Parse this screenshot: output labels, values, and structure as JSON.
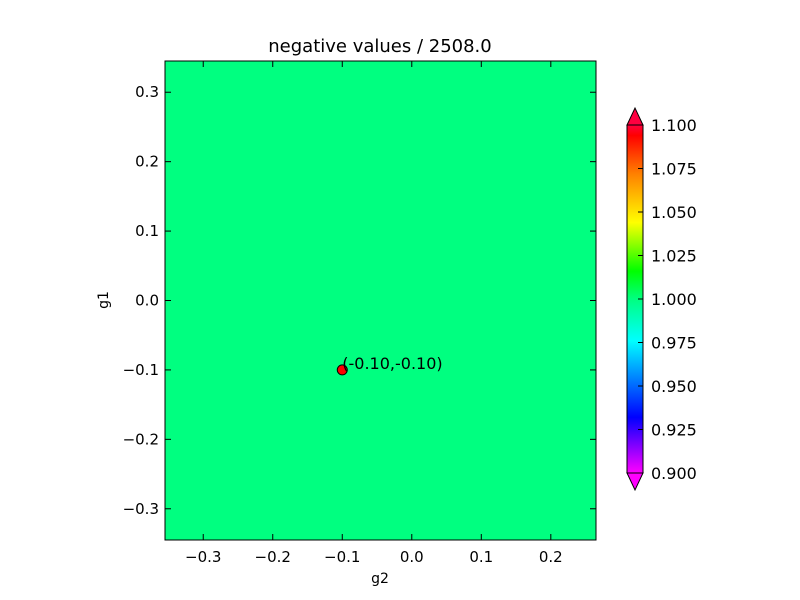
{
  "chart_data": {
    "type": "heatmap",
    "title": "negative values / 2508.0",
    "xlabel": "g2",
    "ylabel": "g1",
    "xlim": [
      -0.355,
      0.265
    ],
    "ylim": [
      -0.345,
      0.345
    ],
    "x_ticks": [
      -0.3,
      -0.2,
      -0.1,
      0.0,
      0.1,
      0.2
    ],
    "x_tick_labels": [
      "−0.3",
      "−0.2",
      "−0.1",
      "0.0",
      "0.1",
      "0.2"
    ],
    "y_ticks": [
      0.3,
      0.2,
      0.1,
      0.0,
      -0.1,
      -0.2,
      -0.3
    ],
    "y_tick_labels": [
      "0.3",
      "0.2",
      "0.1",
      "0.0",
      "−0.1",
      "−0.2",
      "−0.3"
    ],
    "field_value": 1.0,
    "field_color": "#00ff80",
    "marker": {
      "x": -0.1,
      "y": -0.1,
      "label": "(-0.10,-0.10)",
      "color": "#ff0000"
    },
    "colorbar": {
      "min": 0.9,
      "max": 1.1,
      "extend": "both",
      "ticks": [
        1.1,
        1.075,
        1.05,
        1.025,
        1.0,
        0.975,
        0.95,
        0.925,
        0.9
      ],
      "tick_labels": [
        "1.100",
        "1.075",
        "1.050",
        "1.025",
        "1.000",
        "0.975",
        "0.950",
        "0.925",
        "0.900"
      ],
      "colors": [
        "#ff00ff",
        "#0000ff",
        "#00ffff",
        "#00ff80",
        "#00ff00",
        "#ffff00",
        "#ff8000",
        "#ff0000",
        "#ff0040"
      ]
    }
  }
}
